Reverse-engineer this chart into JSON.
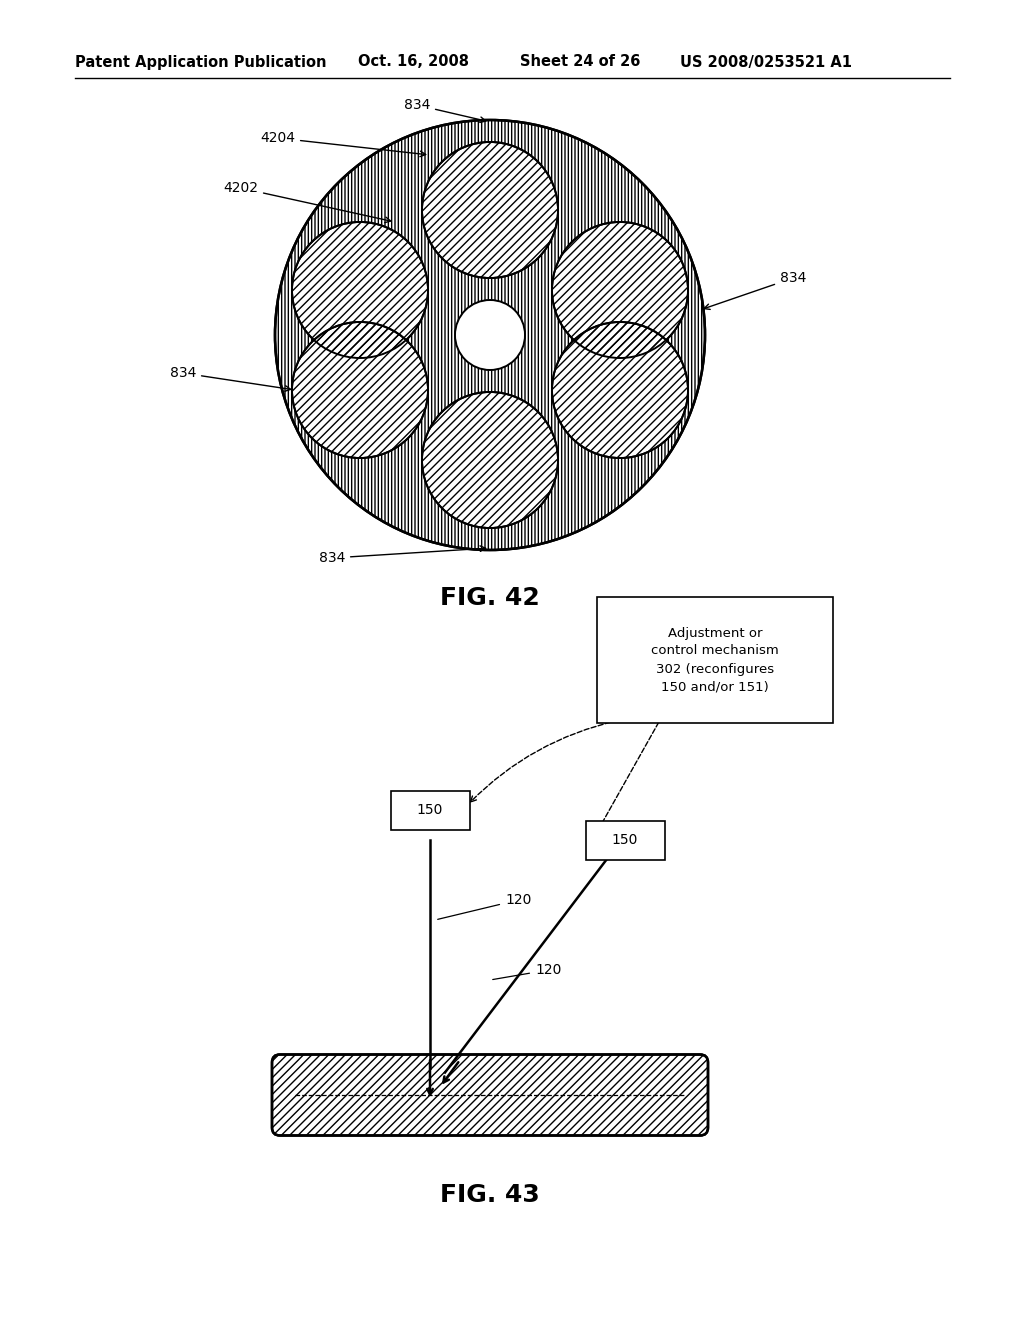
{
  "bg_color": "#ffffff",
  "header_text": "Patent Application Publication",
  "header_date": "Oct. 16, 2008",
  "header_sheet": "Sheet 24 of 26",
  "header_patent": "US 2008/0253521 A1",
  "fig42_title": "FIG. 42",
  "fig43_title": "FIG. 43",
  "page_width": 10.24,
  "page_height": 13.2
}
